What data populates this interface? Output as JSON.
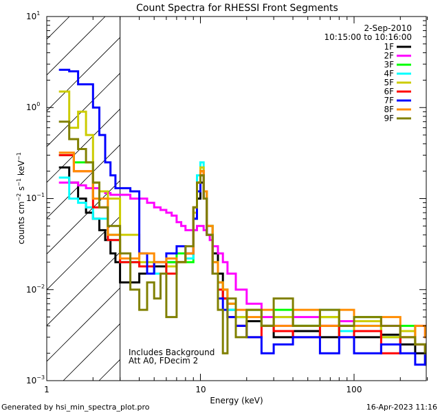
{
  "chart_data": {
    "type": "line",
    "title": "Count Spectra for RHESSI Front Segments",
    "xlabel": "Energy (keV)",
    "ylabel_parts": {
      "base": "counts cm",
      "exp1": "−2",
      "mid": " s",
      "exp2": "−1",
      "unit": " keV",
      "exp3": "−1"
    },
    "x_scale": "log",
    "y_scale": "log",
    "xlim": [
      1.0,
      300
    ],
    "ylim": [
      0.001,
      10
    ],
    "x_ticks": [
      {
        "value": 1,
        "label": "1"
      },
      {
        "value": 10,
        "label": "10"
      },
      {
        "value": 100,
        "label": "100"
      }
    ],
    "y_ticks": [
      {
        "value": 0.001,
        "base": "10",
        "exp": "−3"
      },
      {
        "value": 0.01,
        "base": "10",
        "exp": "−2"
      },
      {
        "value": 0.1,
        "base": "10",
        "exp": "−1"
      },
      {
        "value": 1,
        "base": "10",
        "exp": "0"
      },
      {
        "value": 10,
        "base": "10",
        "exp": "1"
      }
    ],
    "date": "2-Sep-2010",
    "time_range": "10:15:00 to 10:16:00",
    "hatch_region": [
      1.0,
      3.0
    ],
    "annotations": [
      "Includes Background",
      "Att A0, FDecim 2"
    ],
    "series": [
      {
        "name": "1F",
        "color": "#000000",
        "x": [
          1.2,
          1.4,
          1.6,
          1.8,
          2.0,
          2.2,
          2.4,
          2.6,
          2.8,
          3.0,
          4.0,
          5.0,
          6.0,
          7.0,
          8.0,
          9.0,
          9.5,
          10.0,
          10.5,
          11.0,
          12.0,
          13.0,
          14.0,
          15.0,
          17.0,
          20.0,
          25.0,
          30.0,
          40.0,
          60.0,
          80.0,
          100.0,
          150.0,
          200.0,
          250.0,
          290.0
        ],
        "y": [
          0.22,
          0.15,
          0.1,
          0.07,
          0.06,
          0.045,
          0.035,
          0.025,
          0.02,
          0.012,
          0.015,
          0.018,
          0.02,
          0.02,
          0.025,
          0.06,
          0.1,
          0.15,
          0.1,
          0.05,
          0.025,
          0.015,
          0.008,
          0.006,
          0.004,
          0.0045,
          0.004,
          0.003,
          0.0035,
          0.003,
          0.004,
          0.003,
          0.0032,
          0.0025,
          0.002,
          0.0015
        ]
      },
      {
        "name": "2F",
        "color": "#ff00ff",
        "x": [
          1.2,
          1.4,
          1.6,
          1.8,
          2.0,
          2.2,
          2.4,
          2.6,
          2.8,
          3.0,
          3.5,
          4.0,
          4.5,
          5.0,
          5.5,
          6.0,
          6.5,
          7.0,
          7.5,
          8.0,
          8.5,
          9.0,
          9.5,
          10.0,
          10.5,
          11.0,
          11.5,
          12.0,
          13.0,
          14.0,
          15.0,
          17.0,
          20.0,
          25.0,
          30.0,
          40.0,
          60.0,
          80.0,
          100.0,
          150.0,
          200.0,
          250.0,
          290.0
        ],
        "y": [
          0.15,
          0.15,
          0.14,
          0.13,
          0.13,
          0.12,
          0.115,
          0.11,
          0.11,
          0.11,
          0.1,
          0.1,
          0.09,
          0.08,
          0.075,
          0.07,
          0.065,
          0.055,
          0.05,
          0.045,
          0.045,
          0.045,
          0.05,
          0.05,
          0.045,
          0.04,
          0.035,
          0.03,
          0.025,
          0.02,
          0.015,
          0.01,
          0.007,
          0.005,
          0.004,
          0.005,
          0.004,
          0.0045,
          0.0035,
          0.004,
          0.0035,
          0.004,
          0.003
        ]
      },
      {
        "name": "3F",
        "color": "#00ff00",
        "x": [
          1.2,
          1.5,
          2.0,
          2.5,
          3.0,
          4.0,
          5.0,
          6.0,
          7.0,
          8.0,
          9.0,
          9.5,
          10.0,
          10.5,
          11.0,
          12.0,
          13.0,
          14.0,
          15.0,
          17.0,
          20.0,
          25.0,
          30.0,
          40.0,
          60.0,
          80.0,
          100.0,
          150.0,
          200.0,
          250.0,
          290.0
        ],
        "y": [
          0.3,
          0.25,
          0.1,
          0.04,
          0.02,
          0.018,
          0.015,
          0.02,
          0.025,
          0.02,
          0.08,
          0.15,
          0.2,
          0.12,
          0.05,
          0.02,
          0.012,
          0.01,
          0.007,
          0.005,
          0.006,
          0.004,
          0.006,
          0.004,
          0.005,
          0.0035,
          0.005,
          0.003,
          0.004,
          0.0025,
          0.002
        ]
      },
      {
        "name": "4F",
        "color": "#00ffff",
        "x": [
          1.2,
          1.4,
          1.6,
          1.8,
          2.0,
          2.5,
          3.0,
          4.0,
          5.0,
          6.0,
          7.0,
          8.0,
          9.0,
          9.5,
          10.0,
          10.5,
          11.0,
          12.0,
          13.0,
          14.0,
          15.0,
          17.0,
          20.0,
          25.0,
          30.0,
          40.0,
          60.0,
          80.0,
          100.0,
          150.0,
          200.0,
          250.0,
          290.0
        ],
        "y": [
          0.17,
          0.1,
          0.09,
          0.08,
          0.06,
          0.035,
          0.02,
          0.018,
          0.015,
          0.018,
          0.02,
          0.022,
          0.08,
          0.18,
          0.25,
          0.12,
          0.05,
          0.02,
          0.012,
          0.01,
          0.006,
          0.005,
          0.006,
          0.004,
          0.005,
          0.004,
          0.006,
          0.0035,
          0.004,
          0.003,
          0.0035,
          0.0025,
          0.002
        ]
      },
      {
        "name": "5F",
        "color": "#cccc00",
        "x": [
          1.2,
          1.4,
          1.6,
          1.8,
          2.0,
          2.2,
          2.5,
          3.0,
          4.0,
          5.0,
          6.0,
          7.0,
          8.0,
          9.0,
          9.5,
          10.0,
          10.5,
          11.0,
          12.0,
          13.0,
          14.0,
          15.0,
          17.0,
          20.0,
          25.0,
          30.0,
          40.0,
          60.0,
          80.0,
          100.0,
          150.0,
          200.0,
          250.0,
          290.0
        ],
        "y": [
          1.5,
          0.6,
          0.9,
          0.5,
          0.15,
          0.12,
          0.1,
          0.04,
          0.02,
          0.02,
          0.018,
          0.02,
          0.025,
          0.07,
          0.15,
          0.22,
          0.12,
          0.05,
          0.02,
          0.012,
          0.01,
          0.007,
          0.005,
          0.006,
          0.004,
          0.005,
          0.004,
          0.005,
          0.003,
          0.0045,
          0.003,
          0.0035,
          0.0025,
          0.002
        ]
      },
      {
        "name": "6F",
        "color": "#ff0000",
        "x": [
          1.2,
          1.5,
          2.0,
          2.5,
          3.0,
          4.0,
          5.0,
          6.0,
          7.0,
          8.0,
          9.0,
          9.5,
          10.0,
          10.5,
          11.0,
          12.0,
          13.0,
          14.0,
          15.0,
          17.0,
          20.0,
          25.0,
          30.0,
          40.0,
          60.0,
          80.0,
          100.0,
          150.0,
          200.0,
          250.0,
          290.0
        ],
        "y": [
          0.3,
          0.2,
          0.08,
          0.035,
          0.02,
          0.018,
          0.02,
          0.015,
          0.02,
          0.025,
          0.08,
          0.15,
          0.2,
          0.1,
          0.04,
          0.015,
          0.01,
          0.008,
          0.005,
          0.004,
          0.003,
          0.004,
          0.0035,
          0.003,
          0.004,
          0.003,
          0.0035,
          0.002,
          0.003,
          0.0025,
          0.002
        ]
      },
      {
        "name": "7F",
        "color": "#0000ff",
        "x": [
          1.2,
          1.4,
          1.6,
          1.8,
          2.0,
          2.2,
          2.4,
          2.6,
          2.8,
          3.0,
          3.5,
          4.0,
          4.5,
          5.0,
          6.0,
          7.0,
          8.0,
          9.0,
          9.5,
          10.0,
          10.5,
          11.0,
          12.0,
          13.0,
          14.0,
          15.0,
          17.0,
          20.0,
          25.0,
          30.0,
          40.0,
          60.0,
          80.0,
          100.0,
          150.0,
          200.0,
          250.0,
          290.0
        ],
        "y": [
          2.6,
          2.5,
          1.8,
          1.8,
          1.0,
          0.5,
          0.25,
          0.18,
          0.13,
          0.13,
          0.12,
          0.025,
          0.015,
          0.02,
          0.025,
          0.03,
          0.025,
          0.06,
          0.12,
          0.18,
          0.1,
          0.04,
          0.015,
          0.008,
          0.006,
          0.005,
          0.004,
          0.003,
          0.002,
          0.0025,
          0.003,
          0.002,
          0.003,
          0.002,
          0.0025,
          0.002,
          0.0015,
          0.002
        ]
      },
      {
        "name": "8F",
        "color": "#ff8c00",
        "x": [
          1.2,
          1.5,
          2.0,
          2.5,
          3.0,
          4.0,
          5.0,
          6.0,
          7.0,
          8.0,
          9.0,
          9.5,
          10.0,
          10.5,
          11.0,
          12.0,
          13.0,
          14.0,
          15.0,
          17.0,
          20.0,
          25.0,
          30.0,
          40.0,
          60.0,
          80.0,
          100.0,
          150.0,
          200.0,
          250.0,
          290.0
        ],
        "y": [
          0.32,
          0.2,
          0.1,
          0.04,
          0.022,
          0.025,
          0.02,
          0.022,
          0.02,
          0.025,
          0.08,
          0.15,
          0.2,
          0.12,
          0.05,
          0.02,
          0.012,
          0.01,
          0.007,
          0.006,
          0.005,
          0.006,
          0.004,
          0.006,
          0.004,
          0.006,
          0.004,
          0.005,
          0.003,
          0.004,
          0.003
        ]
      },
      {
        "name": "9F",
        "color": "#808000",
        "x": [
          1.2,
          1.4,
          1.6,
          1.8,
          2.0,
          2.2,
          2.5,
          3.0,
          3.5,
          4.0,
          4.5,
          5.0,
          5.5,
          6.0,
          7.0,
          8.0,
          9.0,
          9.5,
          10.0,
          10.5,
          11.0,
          12.0,
          13.0,
          14.0,
          15.0,
          17.0,
          20.0,
          25.0,
          30.0,
          40.0,
          60.0,
          80.0,
          100.0,
          150.0,
          200.0,
          250.0,
          290.0
        ],
        "y": [
          0.7,
          0.45,
          0.35,
          0.25,
          0.15,
          0.08,
          0.05,
          0.025,
          0.01,
          0.006,
          0.012,
          0.008,
          0.015,
          0.005,
          0.02,
          0.03,
          0.08,
          0.15,
          0.18,
          0.1,
          0.04,
          0.015,
          0.006,
          0.002,
          0.008,
          0.003,
          0.006,
          0.004,
          0.008,
          0.004,
          0.006,
          0.004,
          0.005,
          0.004,
          0.003,
          0.0025,
          0.002
        ]
      }
    ]
  },
  "footer": {
    "left": "Generated by hsi_min_spectra_plot.pro",
    "right": "16-Apr-2023 11:16"
  }
}
